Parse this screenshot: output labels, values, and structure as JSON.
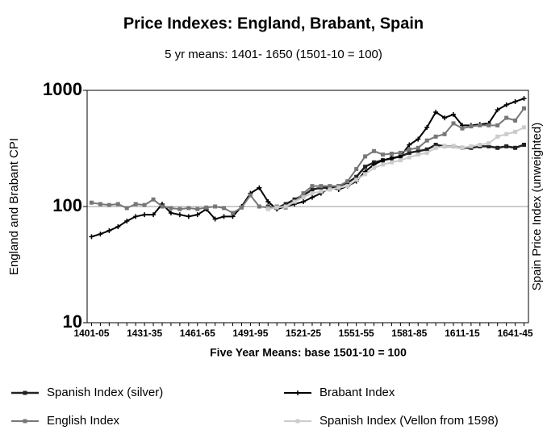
{
  "chart_data": {
    "type": "line",
    "title": "Price Indexes: England, Brabant, Spain",
    "subtitle": "5 yr means: 1401- 1650 (1501-10 = 100)",
    "xlabel": "Five Year Means: base 1501-10 = 100",
    "ylabel": "England and Brabant CPI",
    "y2label": "Spain Price Index (unweighted)",
    "ylog": true,
    "ylim": [
      10,
      1000
    ],
    "yticks": [
      10,
      100,
      1000
    ],
    "grid_lines": [
      100
    ],
    "categories": [
      "1401-05",
      null,
      null,
      null,
      null,
      null,
      "1431-35",
      null,
      null,
      null,
      null,
      null,
      "1461-65",
      null,
      null,
      null,
      null,
      null,
      "1491-95",
      null,
      null,
      null,
      null,
      null,
      "1521-25",
      null,
      null,
      null,
      null,
      null,
      "1551-55",
      null,
      null,
      null,
      null,
      null,
      "1581-85",
      null,
      null,
      null,
      null,
      null,
      "1611-15",
      null,
      null,
      null,
      null,
      null,
      "1641-45",
      null
    ],
    "series": [
      {
        "name": "Spanish Index (silver)",
        "color": "#222222",
        "marker": "square",
        "width": 2.5,
        "values": [
          null,
          null,
          null,
          null,
          null,
          null,
          null,
          null,
          null,
          null,
          null,
          null,
          null,
          null,
          null,
          null,
          null,
          null,
          null,
          null,
          100,
          97,
          105,
          115,
          125,
          140,
          145,
          145,
          150,
          160,
          180,
          220,
          240,
          250,
          260,
          270,
          290,
          300,
          310,
          340,
          330,
          330,
          320,
          320,
          330,
          330,
          320,
          330,
          320,
          340
        ]
      },
      {
        "name": "Brabant Index",
        "color": "#000000",
        "marker": "plus",
        "width": 2,
        "values": [
          55,
          58,
          62,
          67,
          75,
          82,
          85,
          85,
          105,
          88,
          85,
          82,
          85,
          95,
          78,
          82,
          82,
          100,
          130,
          145,
          110,
          95,
          100,
          105,
          110,
          120,
          130,
          145,
          140,
          150,
          165,
          200,
          230,
          250,
          260,
          270,
          340,
          380,
          480,
          650,
          580,
          620,
          500,
          500,
          510,
          520,
          680,
          750,
          800,
          850
        ]
      },
      {
        "name": "English Index",
        "color": "#777777",
        "marker": "square",
        "width": 2,
        "values": [
          108,
          105,
          103,
          105,
          97,
          105,
          103,
          115,
          100,
          97,
          95,
          97,
          95,
          98,
          100,
          97,
          88,
          98,
          125,
          100,
          98,
          100,
          98,
          110,
          130,
          150,
          150,
          150,
          150,
          165,
          210,
          270,
          300,
          280,
          285,
          290,
          310,
          320,
          370,
          400,
          420,
          520,
          470,
          490,
          500,
          500,
          500,
          580,
          550,
          700
        ]
      },
      {
        "name": "Spanish Index (Vellon from 1598)",
        "color": "#cccccc",
        "marker": "square",
        "width": 2,
        "values": [
          null,
          null,
          null,
          null,
          null,
          null,
          null,
          null,
          null,
          null,
          null,
          null,
          null,
          null,
          null,
          null,
          null,
          null,
          null,
          null,
          95,
          98,
          100,
          110,
          120,
          130,
          135,
          140,
          145,
          150,
          170,
          190,
          215,
          230,
          240,
          250,
          265,
          280,
          290,
          320,
          330,
          330,
          320,
          330,
          340,
          350,
          400,
          420,
          440,
          480
        ]
      }
    ]
  }
}
